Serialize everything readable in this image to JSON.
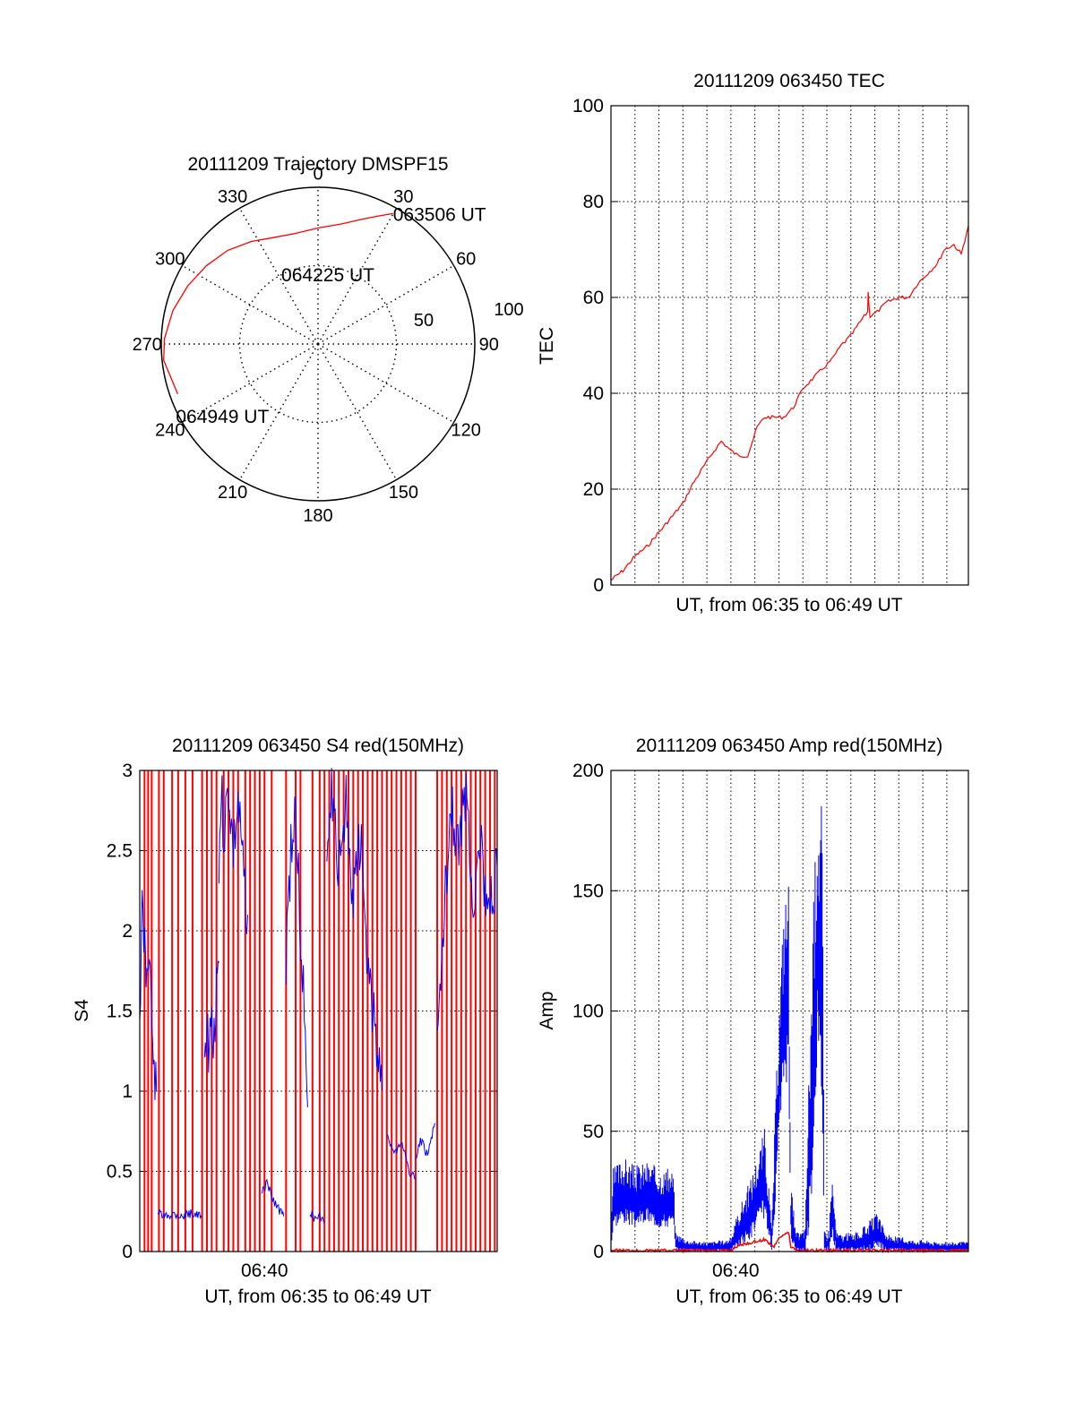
{
  "colors": {
    "red": "#ff0000",
    "blue": "#0000ff",
    "axis": "#000000",
    "grid": "#000000"
  },
  "chart_data": [
    {
      "type": "polar",
      "title": "20111209 Trajectory DMSPF15",
      "angle_ticks": [
        "0",
        "30",
        "60",
        "90",
        "120",
        "150",
        "180",
        "210",
        "240",
        "270",
        "300",
        "330"
      ],
      "angle_values": [
        0,
        30,
        60,
        90,
        120,
        150,
        180,
        210,
        240,
        270,
        300,
        330
      ],
      "radius_tick_labels": [
        "50",
        "100"
      ],
      "radius_rings": [
        50
      ],
      "rmax": 100,
      "grid": true,
      "series": [
        {
          "color": "#ff0000",
          "points": [
            {
              "az": 29.9,
              "r": 96
            },
            {
              "az": 25,
              "r": 90
            },
            {
              "az": 19,
              "r": 84
            },
            {
              "az": 11,
              "r": 78
            },
            {
              "az": 0,
              "r": 74
            },
            {
              "az": -12,
              "r": 72
            },
            {
              "az": -24,
              "r": 74
            },
            {
              "az": -33,
              "r": 78
            },
            {
              "az": -44,
              "r": 83
            },
            {
              "az": -55,
              "r": 87
            },
            {
              "az": -66,
              "r": 91
            },
            {
              "az": -77,
              "r": 95
            },
            {
              "az": -88,
              "r": 98
            },
            {
              "az": -96,
              "r": 99
            },
            {
              "az": -109.6,
              "r": 95
            }
          ]
        }
      ],
      "annotations": [
        {
          "text": "063506 UT",
          "az": 29.9,
          "r": 96
        },
        {
          "text": "064225 UT",
          "az": -35,
          "r": 50
        },
        {
          "text": "064949 UT",
          "az": -109.6,
          "r": 95
        }
      ]
    },
    {
      "type": "line",
      "title": "20111209 063450 TEC",
      "xlabel": "UT, from 06:35 to 06:49 UT",
      "ylabel": "TEC",
      "x_unit": "minutes after 06:35",
      "xlim": [
        0,
        14.9
      ],
      "ylim": [
        0,
        100
      ],
      "yticks": [
        "0",
        "20",
        "40",
        "60",
        "80",
        "100"
      ],
      "ytick_values": [
        0,
        20,
        40,
        60,
        80,
        100
      ],
      "xgrid": [
        1,
        2,
        3,
        4,
        5,
        6,
        7,
        8,
        9,
        10,
        11,
        12,
        13,
        14
      ],
      "grid": true,
      "series": [
        {
          "color": "#ff0000",
          "x": [
            0,
            0.5,
            1.0,
            1.5,
            2.0,
            2.5,
            3.0,
            3.4,
            3.9,
            4.3,
            4.6,
            5.0,
            5.3,
            5.7,
            6.1,
            6.4,
            6.8,
            7.2,
            7.6,
            8.0,
            8.4,
            8.8,
            9.2,
            9.6,
            10.0,
            10.4,
            10.7,
            10.72,
            10.8,
            11.1,
            11.5,
            12.0,
            12.4,
            12.8,
            13.2,
            13.6,
            13.9,
            14.3,
            14.6,
            14.9
          ],
          "y": [
            1,
            3,
            6,
            8,
            11,
            14,
            17,
            21,
            25,
            28,
            30,
            28,
            27,
            27,
            33,
            35,
            35,
            35,
            37,
            41,
            43,
            45,
            47,
            50,
            52,
            55,
            57,
            61,
            56,
            57,
            59,
            60,
            60,
            63,
            65,
            67,
            70,
            71,
            69,
            75
          ]
        }
      ]
    },
    {
      "type": "line",
      "title": "20111209 063450 S4 red(150MHz)",
      "xlabel": "UT, from 06:35 to 06:49 UT",
      "ylabel": "S4",
      "x_unit": "minutes after 06:35",
      "xlim": [
        0,
        14.9
      ],
      "ylim": [
        0,
        3
      ],
      "yticks": [
        "0",
        "0.5",
        "1",
        "1.5",
        "2",
        "2.5",
        "3"
      ],
      "ytick_values": [
        0,
        0.5,
        1,
        1.5,
        2,
        2.5,
        3
      ],
      "xticks": [
        "06:40"
      ],
      "xtick_values": [
        5.2
      ],
      "xgrid": [
        5.2
      ],
      "grid": true,
      "red_spikes_x": [
        0.2,
        0.35,
        0.5,
        0.8,
        1.0,
        1.35,
        1.6,
        1.9,
        2.2,
        2.6,
        2.8,
        3.0,
        3.2,
        3.5,
        3.7,
        3.9,
        4.1,
        4.4,
        4.6,
        4.8,
        5.0,
        5.2,
        5.5,
        6.1,
        6.5,
        6.7,
        7.2,
        7.5,
        7.7,
        7.9,
        8.1,
        8.3,
        8.5,
        8.7,
        8.9,
        9.1,
        9.3,
        9.5,
        9.7,
        9.9,
        10.1,
        10.3,
        10.5,
        10.7,
        10.9,
        11.1,
        11.3,
        11.5,
        12.4,
        12.6,
        12.8,
        13.0,
        13.2,
        13.4,
        13.6,
        13.8,
        14.0,
        14.2,
        14.4,
        14.6,
        14.8
      ],
      "series": [
        {
          "color": "#0000ff",
          "segments": [
            {
              "x": [
                0,
                0.1,
                0.2,
                0.3,
                0.4,
                0.5,
                0.6,
                0.7
              ],
              "y": [
                1.5,
                2.1,
                1.9,
                1.7,
                2.0,
                1.4,
                1.1,
                1.0
              ]
            },
            {
              "x": [
                0.75,
                1.0,
                1.4,
                1.8,
                2.2,
                2.6
              ],
              "y": [
                0.25,
                0.22,
                0.24,
                0.22,
                0.24,
                0.22
              ]
            },
            {
              "x": [
                2.7,
                2.8,
                2.9,
                3.0,
                3.1,
                3.2,
                3.3
              ],
              "y": [
                1.3,
                1.4,
                1.2,
                1.45,
                1.3,
                1.6,
                1.8
              ]
            },
            {
              "x": [
                3.3,
                3.4,
                3.5,
                3.7,
                3.9,
                4.1,
                4.3,
                4.5
              ],
              "y": [
                2.4,
                2.9,
                2.6,
                2.9,
                2.5,
                2.8,
                2.4,
                2.1
              ]
            },
            {
              "x": [
                5.1,
                5.3,
                5.5,
                5.7,
                5.9,
                6.0
              ],
              "y": [
                0.38,
                0.42,
                0.35,
                0.28,
                0.24,
                0.22
              ]
            },
            {
              "x": [
                6.1,
                6.3,
                6.5,
                6.7,
                6.9,
                7.0
              ],
              "y": [
                1.8,
                2.5,
                2.8,
                2.0,
                1.4,
                0.9
              ]
            },
            {
              "x": [
                7.1,
                7.3,
                7.5,
                7.7
              ],
              "y": [
                0.25,
                0.2,
                0.22,
                0.18
              ]
            },
            {
              "x": [
                7.8,
                8.0,
                8.3,
                8.6,
                8.9,
                9.2,
                9.5,
                9.8,
                10.1
              ],
              "y": [
                2.6,
                2.9,
                2.4,
                2.8,
                2.2,
                2.6,
                1.8,
                1.4,
                1.0
              ]
            },
            {
              "x": [
                10.3,
                10.6,
                10.9,
                11.2,
                11.5
              ],
              "y": [
                0.75,
                0.6,
                0.7,
                0.5,
                0.45
              ]
            },
            {
              "x": [
                11.5,
                11.7,
                12.0,
                12.3
              ],
              "y": [
                0.55,
                0.7,
                0.6,
                0.8
              ]
            },
            {
              "x": [
                12.4,
                12.7,
                13.0,
                13.3,
                13.6,
                13.9,
                14.2,
                14.5,
                14.9
              ],
              "y": [
                1.2,
                2.2,
                2.8,
                2.5,
                2.9,
                2.2,
                2.6,
                2.0,
                2.4
              ]
            }
          ]
        }
      ]
    },
    {
      "type": "line",
      "title": "20111209 063450 Amp red(150MHz)",
      "xlabel": "UT, from 06:35 to 06:49 UT",
      "ylabel": "Amp",
      "x_unit": "minutes after 06:35",
      "xlim": [
        0,
        14.9
      ],
      "ylim": [
        0,
        200
      ],
      "yticks": [
        "0",
        "50",
        "100",
        "150",
        "200"
      ],
      "ytick_values": [
        0,
        50,
        100,
        150,
        200
      ],
      "xticks": [
        "06:40"
      ],
      "xtick_values": [
        5.2
      ],
      "xgrid": [
        1,
        2,
        3,
        4,
        5,
        6,
        7,
        8,
        9,
        10,
        11,
        12,
        13,
        14
      ],
      "grid": true,
      "series": [
        {
          "color": "#0000ff",
          "envelope": {
            "x": [
              0,
              0.1,
              0.5,
              1.0,
              1.5,
              2.0,
              2.6,
              2.7,
              3.2,
              4.0,
              4.8,
              5.0,
              5.4,
              5.8,
              6.1,
              6.4,
              6.7,
              6.85,
              7.0,
              7.2,
              7.4,
              7.5,
              7.7,
              7.9,
              8.1,
              8.3,
              8.6,
              8.8,
              8.9,
              9.0,
              9.1,
              9.2,
              9.4,
              9.7,
              9.9,
              10.3,
              10.7,
              11.1,
              11.5,
              12.1,
              12.5,
              13.0,
              13.5,
              14.0,
              14.5,
              14.9
            ],
            "top": [
              8,
              35,
              40,
              36,
              38,
              35,
              34,
              8,
              5,
              4,
              5,
              6,
              20,
              30,
              40,
              52,
              10,
              60,
              100,
              145,
              158,
              30,
              8,
              8,
              10,
              100,
              195,
              190,
              10,
              8,
              10,
              35,
              8,
              7,
              8,
              8,
              12,
              16,
              7,
              6,
              5,
              5,
              4,
              4,
              4,
              4
            ],
            "bottom": [
              0,
              10,
              12,
              10,
              12,
              10,
              10,
              0,
              0,
              0,
              0,
              0,
              2,
              5,
              10,
              14,
              0,
              15,
              45,
              70,
              70,
              5,
              0,
              0,
              0,
              10,
              80,
              60,
              0,
              0,
              0,
              5,
              0,
              0,
              0,
              0,
              0,
              2,
              0,
              0,
              0,
              0,
              0,
              0,
              0,
              0
            ]
          }
        },
        {
          "color": "#ff0000",
          "x": [
            0,
            1,
            2,
            3,
            4,
            5,
            5.2,
            5.5,
            6.0,
            6.4,
            6.8,
            7.0,
            7.2,
            7.4,
            7.5,
            7.8,
            8.5,
            9.5,
            10.5,
            12,
            14.9
          ],
          "y": [
            0.5,
            0.5,
            0.5,
            0.5,
            0.5,
            0.5,
            2,
            3,
            4,
            5,
            2,
            6,
            7,
            8,
            2,
            0.5,
            0.5,
            0.5,
            0.5,
            0.5,
            0.5
          ]
        }
      ]
    }
  ]
}
